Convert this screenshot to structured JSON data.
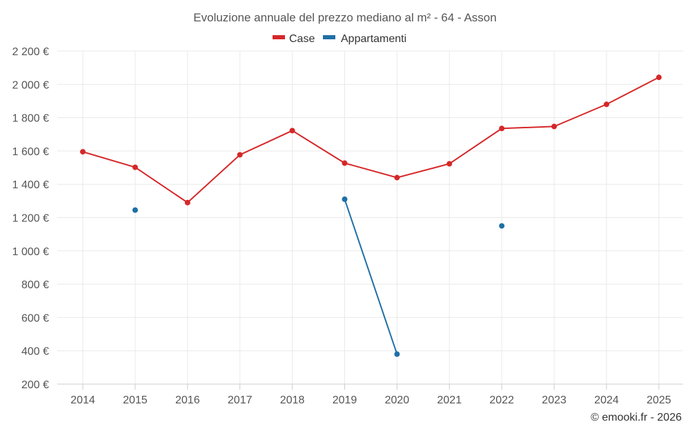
{
  "chart_data": {
    "type": "line",
    "title": "Evoluzione annuale del prezzo mediano al m² - 64 - Asson",
    "categories": [
      "2014",
      "2015",
      "2016",
      "2017",
      "2018",
      "2019",
      "2020",
      "2021",
      "2022",
      "2023",
      "2024",
      "2025"
    ],
    "y_ticks": [
      200,
      400,
      600,
      800,
      1000,
      1200,
      1400,
      1600,
      1800,
      2000,
      2200
    ],
    "y_tick_labels": [
      "200 €",
      "400 €",
      "600 €",
      "800 €",
      "1 000 €",
      "1 200 €",
      "1 400 €",
      "1 600 €",
      "1 800 €",
      "2 000 €",
      "2 200 €"
    ],
    "ylim": [
      200,
      2200
    ],
    "xlabel": "",
    "ylabel": "",
    "legend_position": "top-center",
    "grid": true,
    "series": [
      {
        "name": "Case",
        "color": "#d62728",
        "values": [
          1595,
          1502,
          1290,
          1577,
          1722,
          1527,
          1440,
          1523,
          1735,
          1747,
          1880,
          2042
        ]
      },
      {
        "name": "Appartamenti",
        "color": "#1f6fa5",
        "values": [
          null,
          1245,
          null,
          null,
          null,
          1310,
          380,
          null,
          1150,
          null,
          null,
          null
        ]
      }
    ],
    "credit": "© emooki.fr - 2026"
  }
}
